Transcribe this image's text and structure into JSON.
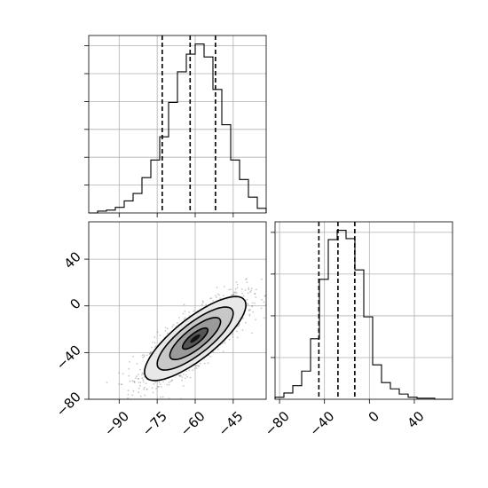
{
  "chart_data": [
    {
      "type": "histogram",
      "panel": "top-left marginal",
      "xlim": [
        -102,
        -32
      ],
      "grid": true,
      "bin_edges": [
        -102,
        -98.5,
        -95,
        -91.5,
        -88,
        -84.5,
        -81,
        -77.5,
        -74,
        -70.5,
        -67,
        -63.5,
        -60,
        -56.5,
        -53,
        -49.5,
        -46,
        -42.5,
        -39,
        -35.5,
        -32
      ],
      "counts": [
        0,
        2,
        3,
        6,
        13,
        21,
        38,
        57,
        82,
        119,
        152,
        171,
        182,
        168,
        133,
        95,
        57,
        36,
        17,
        5
      ],
      "quantile_lines": [
        -73,
        -62,
        -52
      ]
    },
    {
      "type": "scatter",
      "panel": "bottom-left joint",
      "xlim": [
        -102,
        -32
      ],
      "ylim": [
        -80,
        72
      ],
      "xticks": [
        -90,
        -75,
        -60,
        -45
      ],
      "yticks": [
        -80,
        -40,
        0,
        40
      ],
      "grid": true,
      "density_contours": true,
      "correlation": 0.8,
      "center": [
        -60,
        -28
      ],
      "spread": [
        10,
        18
      ]
    },
    {
      "type": "histogram",
      "panel": "bottom-right marginal",
      "xlim": [
        -84,
        74
      ],
      "xticks": [
        -80,
        -40,
        0,
        40
      ],
      "grid": true,
      "bin_edges": [
        -84,
        -76.1,
        -68.2,
        -60.3,
        -52.4,
        -44.5,
        -36.6,
        -28.7,
        -20.8,
        -12.9,
        -5,
        2.9,
        10.8,
        18.7,
        26.6,
        34.5,
        42.4,
        50.3,
        58.2,
        66.1,
        74
      ],
      "counts": [
        2,
        6,
        13,
        27,
        58,
        115,
        153,
        162,
        154,
        124,
        79,
        33,
        16,
        10,
        5,
        2,
        1,
        1,
        0,
        0
      ],
      "quantile_lines": [
        -45,
        -28,
        -13
      ]
    }
  ]
}
